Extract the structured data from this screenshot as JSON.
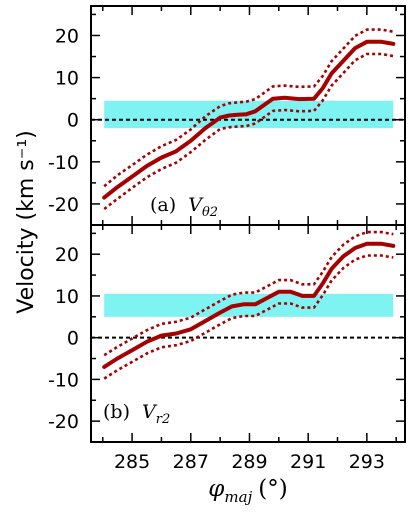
{
  "chart_data": [
    {
      "type": "line",
      "panel_label": "(a)",
      "panel_var": "V",
      "panel_sub": "θ2",
      "ylabel": "Velocity (km s⁻¹)",
      "xlim": [
        283.6,
        294.3
      ],
      "ylim": [
        -25,
        27
      ],
      "yticks": [
        -20,
        -10,
        0,
        10,
        20
      ],
      "xticks": [
        285,
        287,
        289,
        291,
        293
      ],
      "band": {
        "y0": -2,
        "y1": 4.5,
        "color": "#7ff2f2"
      },
      "zero_line": 0,
      "line_color": "#a60000",
      "x": [
        284.05,
        284.5,
        285.0,
        285.5,
        286.0,
        286.5,
        287.0,
        287.5,
        288.0,
        288.3,
        288.6,
        288.9,
        289.2,
        289.5,
        289.8,
        290.2,
        290.7,
        291.2,
        291.5,
        291.8,
        292.2,
        292.6,
        293.0,
        293.5,
        293.9
      ],
      "series": [
        {
          "role": "center",
          "values": [
            -18.5,
            -16.0,
            -13.5,
            -11.0,
            -9.0,
            -7.5,
            -5.0,
            -2.0,
            0.5,
            1.0,
            1.2,
            1.3,
            2.0,
            3.5,
            5.0,
            5.2,
            4.9,
            5.0,
            7.5,
            11.0,
            14.0,
            17.0,
            18.5,
            18.5,
            18.0
          ]
        },
        {
          "role": "upper",
          "values": [
            -15.8,
            -13.2,
            -10.8,
            -8.3,
            -6.3,
            -4.8,
            -2.3,
            0.8,
            3.2,
            3.9,
            4.1,
            4.3,
            4.9,
            6.4,
            7.9,
            8.1,
            7.8,
            7.9,
            10.4,
            13.9,
            16.9,
            19.9,
            21.4,
            21.4,
            20.9
          ]
        },
        {
          "role": "lower",
          "values": [
            -21.2,
            -18.8,
            -16.2,
            -13.7,
            -11.7,
            -10.2,
            -7.7,
            -4.8,
            -2.2,
            -1.8,
            -1.6,
            -1.5,
            -0.9,
            0.6,
            2.1,
            2.3,
            2.0,
            2.1,
            4.6,
            8.1,
            11.1,
            14.1,
            15.6,
            15.6,
            15.1
          ]
        }
      ]
    },
    {
      "type": "line",
      "panel_label": "(b)",
      "panel_var": "V",
      "panel_sub": "r2",
      "xlabel": "φ",
      "xlabel_sub": "maj",
      "xlabel_unit": "(°)",
      "xlim": [
        283.6,
        294.3
      ],
      "ylim": [
        -25,
        27
      ],
      "yticks": [
        -20,
        -10,
        0,
        10,
        20
      ],
      "xticks": [
        285,
        287,
        289,
        291,
        293
      ],
      "band": {
        "y0": 5,
        "y1": 10.5,
        "color": "#7ff2f2"
      },
      "zero_line": 0,
      "line_color": "#a60000",
      "x": [
        284.05,
        284.5,
        285.0,
        285.5,
        286.0,
        286.5,
        287.0,
        287.5,
        288.0,
        288.4,
        288.8,
        289.2,
        289.6,
        290.0,
        290.4,
        290.8,
        291.2,
        291.5,
        291.8,
        292.2,
        292.6,
        293.0,
        293.5,
        293.9
      ],
      "series": [
        {
          "role": "center",
          "values": [
            -7.0,
            -5.0,
            -3.0,
            -1.0,
            0.5,
            1.0,
            2.0,
            4.0,
            6.0,
            7.5,
            8.0,
            8.0,
            9.5,
            11.0,
            11.0,
            10.0,
            10.0,
            13.0,
            16.5,
            19.5,
            21.5,
            22.5,
            22.5,
            22.0
          ]
        },
        {
          "role": "upper",
          "values": [
            -4.2,
            -2.2,
            -0.2,
            1.8,
            3.3,
            3.8,
            4.8,
            6.8,
            8.8,
            10.3,
            10.8,
            10.8,
            12.3,
            13.8,
            13.8,
            12.8,
            12.8,
            15.8,
            19.3,
            22.3,
            24.3,
            25.3,
            25.3,
            24.8
          ]
        },
        {
          "role": "lower",
          "values": [
            -9.8,
            -7.8,
            -5.8,
            -3.8,
            -2.3,
            -1.8,
            -0.8,
            1.2,
            3.2,
            4.7,
            5.2,
            5.2,
            6.7,
            8.2,
            8.2,
            7.2,
            7.2,
            10.2,
            13.7,
            16.7,
            18.7,
            19.7,
            19.7,
            19.2
          ]
        }
      ]
    }
  ]
}
